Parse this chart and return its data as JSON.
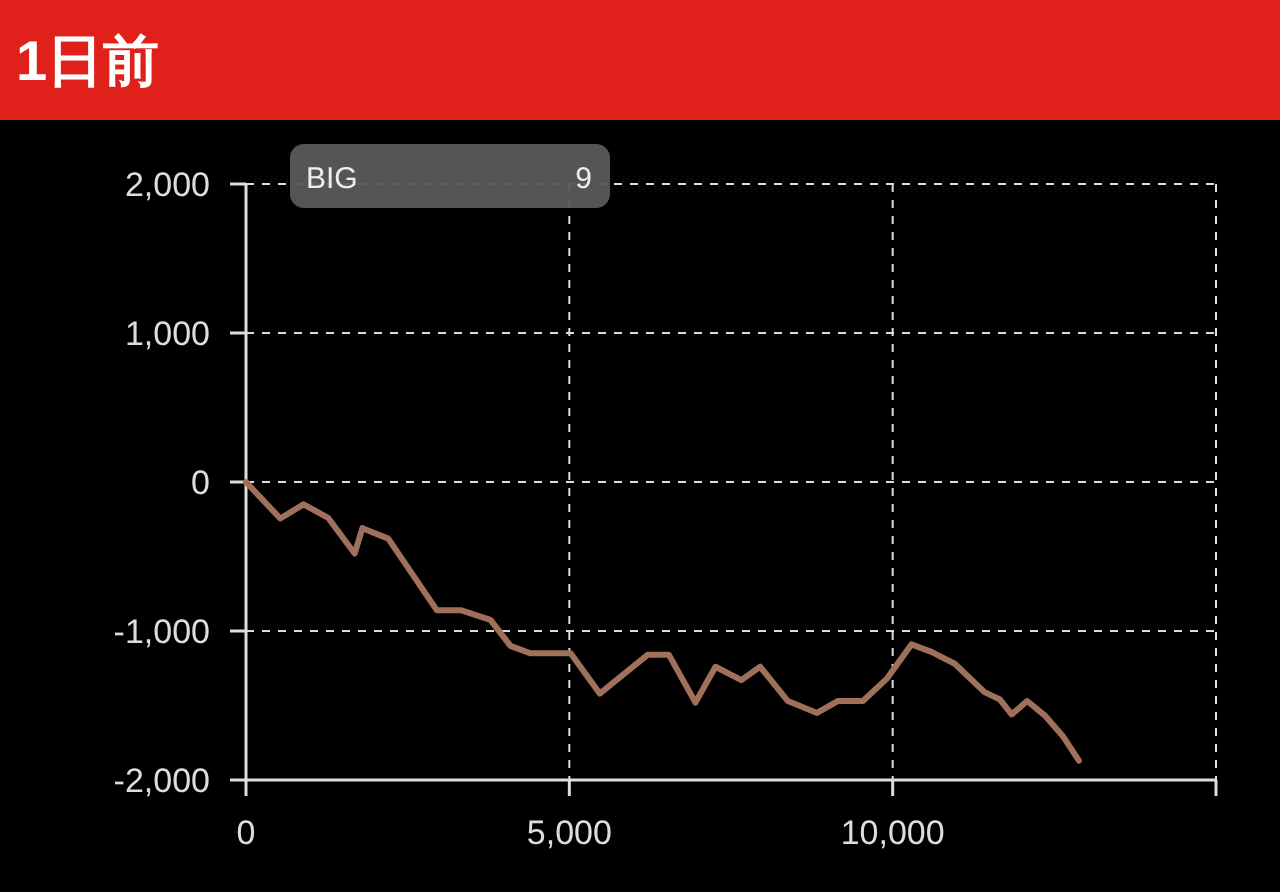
{
  "chart_data": {
    "type": "line",
    "title": "1日前",
    "x": [
      0,
      530,
      890,
      1270,
      1680,
      1800,
      2200,
      2950,
      3320,
      3780,
      4090,
      4400,
      5020,
      5470,
      6210,
      6540,
      6950,
      7260,
      7660,
      7950,
      8380,
      8830,
      9150,
      9540,
      9910,
      10290,
      10600,
      10960,
      11420,
      11660,
      11840,
      12080,
      12360,
      12640,
      12880
    ],
    "series": [
      {
        "color": "#a0705a",
        "values": [
          0,
          -245,
          -150,
          -240,
          -480,
          -310,
          -380,
          -860,
          -860,
          -925,
          -1100,
          -1150,
          -1150,
          -1420,
          -1160,
          -1160,
          -1480,
          -1240,
          -1330,
          -1240,
          -1470,
          -1550,
          -1470,
          -1470,
          -1320,
          -1090,
          -1140,
          -1220,
          -1410,
          -1460,
          -1560,
          -1470,
          -1570,
          -1710,
          -1870
        ]
      }
    ],
    "xlim": [
      0,
      15000
    ],
    "xticks": [
      {
        "value": 0,
        "label": "0"
      },
      {
        "value": 5000,
        "label": "5,000"
      },
      {
        "value": 10000,
        "label": "10,000"
      },
      {
        "value": 15000,
        "label": null
      }
    ],
    "ylim": [
      -2000,
      2000
    ],
    "yticks": [
      {
        "value": -2000,
        "label": "-2,000"
      },
      {
        "value": -1000,
        "label": "-1,000"
      },
      {
        "value": 0,
        "label": "0"
      },
      {
        "value": 1000,
        "label": "1,000"
      },
      {
        "value": 2000,
        "label": "2,000"
      }
    ],
    "grid": true,
    "marker": "none",
    "line_style": "solid",
    "annotations": [
      "BIG",
      "9"
    ]
  }
}
